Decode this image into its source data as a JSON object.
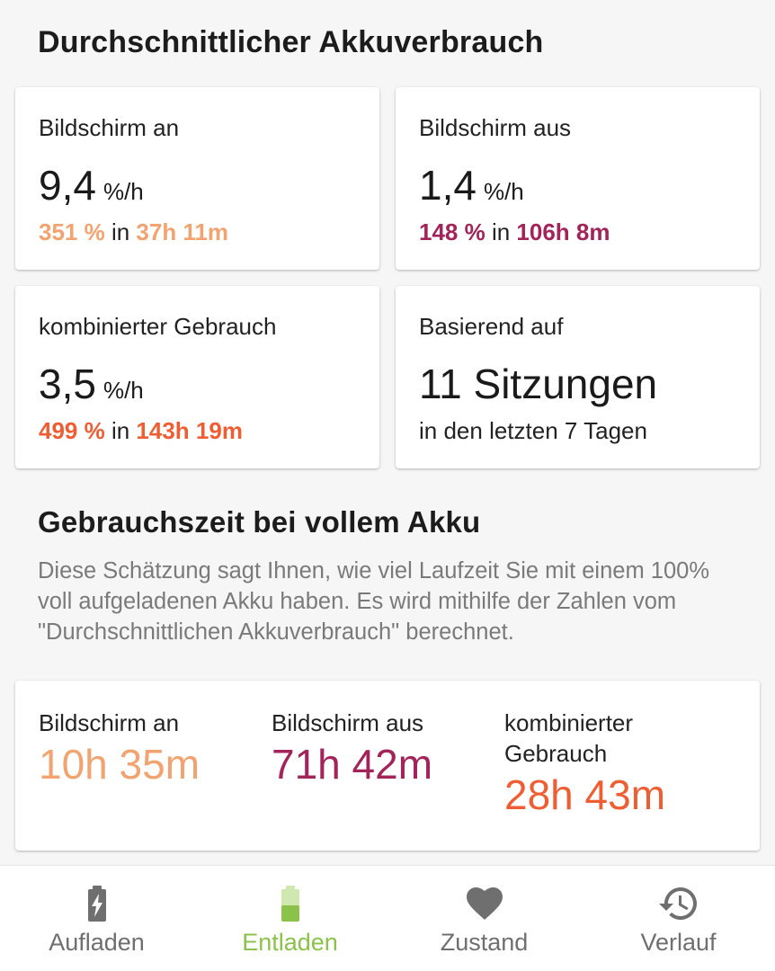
{
  "colors": {
    "screen_on": "#F2A36F",
    "screen_off": "#A3245A",
    "combined": "#EE5E32",
    "active_tab": "#8BC34A",
    "inactive_tab": "#6F6F6F"
  },
  "section1": {
    "title": "Durchschnittlicher Akkuverbrauch"
  },
  "cards": {
    "screen_on": {
      "label": "Bildschirm an",
      "value": "9,4",
      "unit": "%/h",
      "percent": "351 %",
      "in_word": " in ",
      "duration": "37h 11m"
    },
    "screen_off": {
      "label": "Bildschirm aus",
      "value": "1,4",
      "unit": "%/h",
      "percent": "148 %",
      "in_word": " in ",
      "duration": "106h 8m"
    },
    "combined": {
      "label": "kombinierter Gebrauch",
      "value": "3,5",
      "unit": "%/h",
      "percent": "499 %",
      "in_word": " in ",
      "duration": "143h 19m"
    },
    "sessions": {
      "label": "Basierend auf",
      "value": "11 Sitzungen",
      "sub": "in den letzten 7 Tagen"
    }
  },
  "section2": {
    "title": "Gebrauchszeit bei vollem Akku",
    "description": "Diese Schätzung sagt Ihnen, wie viel Laufzeit Sie mit einem 100% voll aufgeladenen Akku haben. Es wird mithilfe der Zahlen vom \"Durchschnittlichen Akkuverbrauch\" berechnet."
  },
  "estimates": {
    "screen_on": {
      "label": "Bildschirm an",
      "value": "10h 35m"
    },
    "screen_off": {
      "label": "Bildschirm aus",
      "value": "71h 42m"
    },
    "combined": {
      "label": "kombinierter Gebrauch",
      "value": "28h 43m"
    }
  },
  "bottom_nav": {
    "items": [
      {
        "label": "Aufladen",
        "icon": "battery-charging-icon",
        "active": false
      },
      {
        "label": "Entladen",
        "icon": "battery-discharging-icon",
        "active": true
      },
      {
        "label": "Zustand",
        "icon": "heart-icon",
        "active": false
      },
      {
        "label": "Verlauf",
        "icon": "history-icon",
        "active": false
      }
    ]
  }
}
